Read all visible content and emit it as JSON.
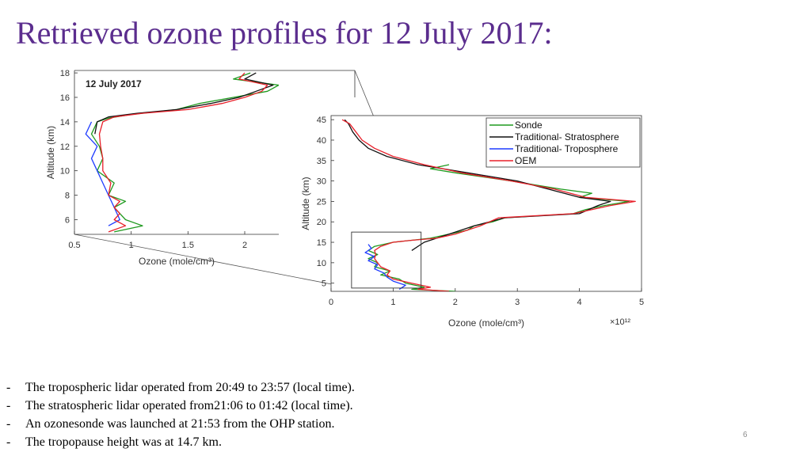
{
  "slide": {
    "title": "Retrieved ozone profiles for 12 July 2017:",
    "page_number": "6"
  },
  "bullets": [
    "The tropospheric lidar operated from 20:49 to 23:57 (local time).",
    "The stratospheric lidar operated from21:06 to 01:42 (local time).",
    "An ozonesonde was launched at 21:53 from the OHP station.",
    "The tropopause height was at 14.7 km."
  ],
  "bullet_marker": "-",
  "colors": {
    "title": "#5b2d8e",
    "Sonde": "#1f9a1f",
    "Traditional- Stratosphere": "#111111",
    "Traditional- Troposphere": "#1f3cff",
    "OEM": "#e8202a",
    "zoom_box": "#555555"
  },
  "chart_data": [
    {
      "id": "main",
      "type": "line",
      "xlabel": "Ozone (mole/cm³)",
      "x_multiplier": "×10¹²",
      "ylabel": "Altitude (km)",
      "xlim": [
        0,
        5
      ],
      "ylim": [
        3,
        46
      ],
      "xticks": [
        "0",
        "1",
        "2",
        "3",
        "4",
        "5"
      ],
      "yticks": [
        "5",
        "10",
        "15",
        "20",
        "25",
        "30",
        "35",
        "40",
        "45"
      ],
      "legend_position": "top-right",
      "series": [
        {
          "name": "Sonde",
          "points": [
            [
              2.0,
              3
            ],
            [
              1.3,
              3.5
            ],
            [
              1.5,
              4
            ],
            [
              1.2,
              5
            ],
            [
              1.1,
              6
            ],
            [
              0.8,
              7
            ],
            [
              0.95,
              8
            ],
            [
              0.7,
              9
            ],
            [
              0.75,
              10
            ],
            [
              0.6,
              11
            ],
            [
              0.75,
              12
            ],
            [
              0.6,
              13
            ],
            [
              0.7,
              14
            ],
            [
              1.0,
              15
            ],
            [
              1.3,
              15.5
            ],
            [
              1.6,
              16
            ],
            [
              1.9,
              17
            ],
            [
              2.2,
              18
            ],
            [
              2.3,
              19
            ],
            [
              2.6,
              20
            ],
            [
              2.8,
              21
            ],
            [
              3.9,
              22
            ],
            [
              4.1,
              23
            ],
            [
              4.4,
              24
            ],
            [
              4.8,
              25
            ],
            [
              4.0,
              26
            ],
            [
              4.2,
              27
            ],
            [
              3.7,
              28
            ],
            [
              2.9,
              30
            ],
            [
              2.0,
              32
            ],
            [
              1.6,
              33
            ],
            [
              1.9,
              34
            ]
          ]
        },
        {
          "name": "Traditional- Stratosphere",
          "points": [
            [
              1.3,
              13
            ],
            [
              1.5,
              15
            ],
            [
              1.9,
              17
            ],
            [
              2.3,
              19
            ],
            [
              2.8,
              21
            ],
            [
              4.0,
              22
            ],
            [
              4.3,
              24
            ],
            [
              4.5,
              25
            ],
            [
              4.0,
              26
            ],
            [
              3.5,
              28
            ],
            [
              3.0,
              30
            ],
            [
              2.2,
              32
            ],
            [
              1.4,
              34
            ],
            [
              0.9,
              36
            ],
            [
              0.6,
              38
            ],
            [
              0.45,
              40
            ],
            [
              0.35,
              42
            ],
            [
              0.28,
              44
            ],
            [
              0.22,
              45
            ]
          ]
        },
        {
          "name": "Traditional- Troposphere",
          "points": [
            [
              1.1,
              3.5
            ],
            [
              1.2,
              4.5
            ],
            [
              1.0,
              5.5
            ],
            [
              0.9,
              6.5
            ],
            [
              0.85,
              7.5
            ],
            [
              0.7,
              8.5
            ],
            [
              0.75,
              9.5
            ],
            [
              0.6,
              10.5
            ],
            [
              0.7,
              11.5
            ],
            [
              0.55,
              12.5
            ],
            [
              0.65,
              13.5
            ],
            [
              0.6,
              14.5
            ]
          ]
        },
        {
          "name": "OEM",
          "points": [
            [
              1.9,
              3
            ],
            [
              1.4,
              3.5
            ],
            [
              1.6,
              4
            ],
            [
              1.3,
              5
            ],
            [
              1.0,
              6
            ],
            [
              0.9,
              7
            ],
            [
              0.95,
              8
            ],
            [
              0.8,
              9
            ],
            [
              0.75,
              10
            ],
            [
              0.7,
              11
            ],
            [
              0.72,
              12
            ],
            [
              0.7,
              13
            ],
            [
              0.8,
              14
            ],
            [
              1.0,
              15
            ],
            [
              1.3,
              15.5
            ],
            [
              1.7,
              16
            ],
            [
              2.0,
              17
            ],
            [
              2.4,
              19
            ],
            [
              2.7,
              21
            ],
            [
              3.9,
              22
            ],
            [
              4.2,
              23
            ],
            [
              4.5,
              24
            ],
            [
              4.9,
              25
            ],
            [
              4.1,
              26
            ],
            [
              3.6,
              28
            ],
            [
              2.9,
              30
            ],
            [
              2.1,
              32
            ],
            [
              1.5,
              34
            ],
            [
              1.0,
              36
            ],
            [
              0.7,
              38
            ],
            [
              0.5,
              40
            ],
            [
              0.4,
              42
            ],
            [
              0.3,
              44
            ],
            [
              0.18,
              45
            ]
          ]
        }
      ]
    },
    {
      "id": "inset",
      "type": "line",
      "annotation": "12 July 2017",
      "xlabel": "Ozone (mole/cm³)",
      "ylabel": "Altitude (km)",
      "xlim": [
        0.5,
        2.3
      ],
      "ylim": [
        4.8,
        18.2
      ],
      "xticks": [
        "0.5",
        "1",
        "1.5",
        "2"
      ],
      "yticks": [
        "6",
        "8",
        "10",
        "12",
        "14",
        "16",
        "18"
      ],
      "series": [
        {
          "name": "Sonde",
          "points": [
            [
              0.85,
              5
            ],
            [
              1.1,
              5.5
            ],
            [
              0.95,
              6
            ],
            [
              0.9,
              6.5
            ],
            [
              0.85,
              7
            ],
            [
              0.95,
              7.5
            ],
            [
              0.8,
              8
            ],
            [
              0.85,
              9
            ],
            [
              0.7,
              10
            ],
            [
              0.75,
              11
            ],
            [
              0.72,
              12
            ],
            [
              0.65,
              13
            ],
            [
              0.7,
              14
            ],
            [
              0.8,
              14.3
            ],
            [
              1.0,
              14.6
            ],
            [
              1.4,
              15
            ],
            [
              1.6,
              15.5
            ],
            [
              1.9,
              16
            ],
            [
              2.2,
              16.5
            ],
            [
              2.3,
              17
            ],
            [
              1.9,
              17.5
            ],
            [
              2.05,
              18
            ]
          ]
        },
        {
          "name": "Traditional- Stratosphere",
          "points": [
            [
              0.68,
              13
            ],
            [
              0.7,
              14
            ],
            [
              0.8,
              14.4
            ],
            [
              1.05,
              14.7
            ],
            [
              1.4,
              15
            ],
            [
              1.7,
              15.5
            ],
            [
              1.95,
              16
            ],
            [
              2.1,
              16.5
            ],
            [
              2.25,
              17
            ],
            [
              2.0,
              17.5
            ],
            [
              2.1,
              18
            ]
          ]
        },
        {
          "name": "Traditional- Troposphere",
          "points": [
            [
              0.8,
              5.5
            ],
            [
              0.9,
              6
            ],
            [
              0.85,
              7
            ],
            [
              0.8,
              8
            ],
            [
              0.75,
              9
            ],
            [
              0.7,
              10
            ],
            [
              0.65,
              11
            ],
            [
              0.7,
              12
            ],
            [
              0.6,
              13
            ],
            [
              0.65,
              14
            ]
          ]
        },
        {
          "name": "OEM",
          "points": [
            [
              0.8,
              5
            ],
            [
              0.95,
              5.5
            ],
            [
              0.85,
              6
            ],
            [
              0.9,
              6.5
            ],
            [
              0.85,
              7
            ],
            [
              0.9,
              7.5
            ],
            [
              0.8,
              8
            ],
            [
              0.82,
              9
            ],
            [
              0.75,
              10
            ],
            [
              0.75,
              11
            ],
            [
              0.73,
              12
            ],
            [
              0.72,
              13
            ],
            [
              0.75,
              14
            ],
            [
              0.85,
              14.4
            ],
            [
              1.1,
              14.7
            ],
            [
              1.5,
              15
            ],
            [
              1.8,
              15.5
            ],
            [
              2.0,
              16
            ],
            [
              2.15,
              16.5
            ],
            [
              2.2,
              17
            ],
            [
              1.95,
              17.5
            ],
            [
              2.0,
              18
            ]
          ]
        }
      ]
    }
  ]
}
